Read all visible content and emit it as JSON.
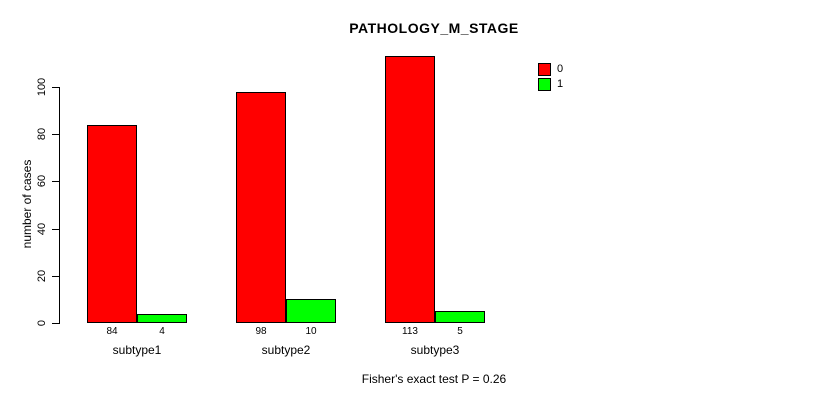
{
  "chart_data": {
    "type": "bar",
    "title": "PATHOLOGY_M_STAGE",
    "ylabel": "number of cases",
    "xlabel": "",
    "categories": [
      "subtype1",
      "subtype2",
      "subtype3"
    ],
    "series": [
      {
        "name": "0",
        "color": "#ff0000",
        "values": [
          84,
          98,
          113
        ]
      },
      {
        "name": "1",
        "color": "#00ff00",
        "values": [
          4,
          10,
          5
        ]
      }
    ],
    "yticks": [
      0,
      20,
      40,
      60,
      80,
      100
    ],
    "ylim": [
      0,
      118
    ],
    "grid": false,
    "bar_border_color": "#000000",
    "background_color": "#ffffff",
    "legend_position": "top-right",
    "footer": "Fisher's exact test P = 0.26"
  }
}
